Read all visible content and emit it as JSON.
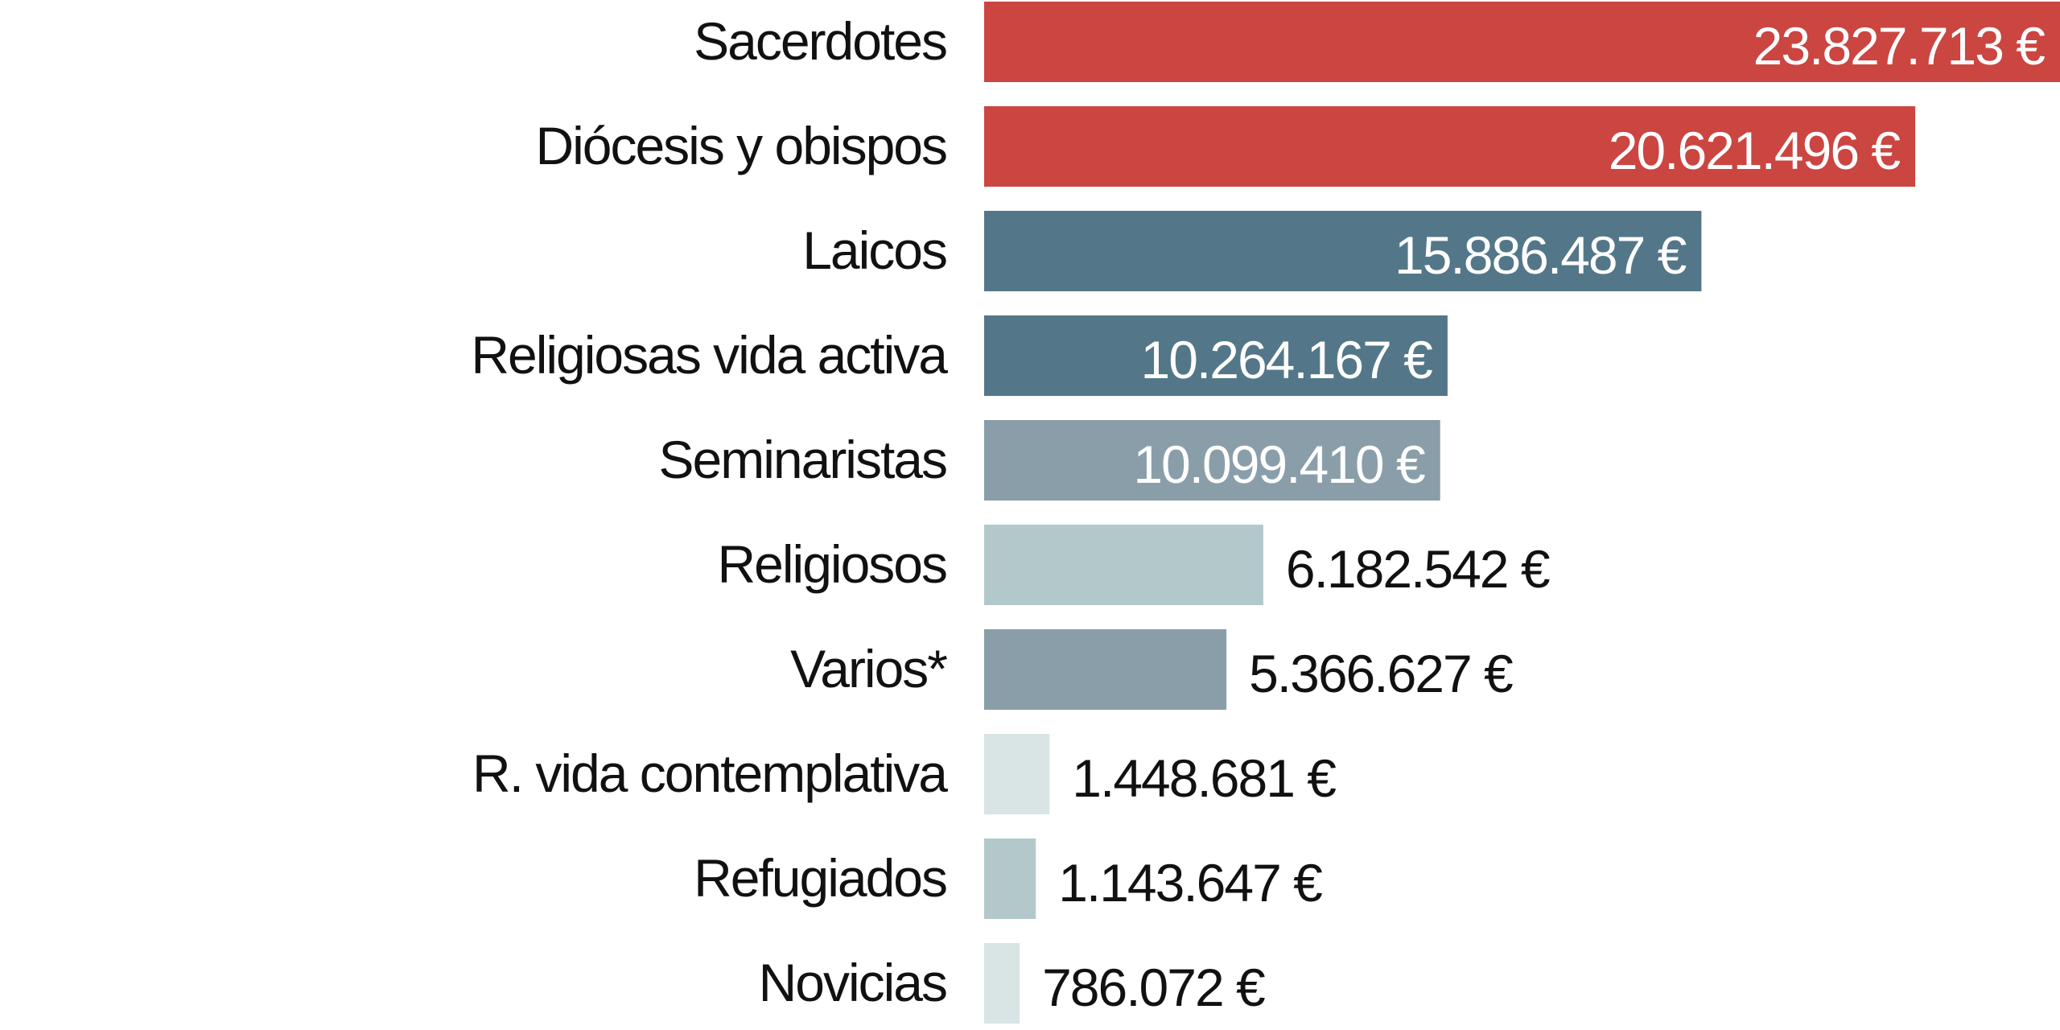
{
  "chart_data": {
    "type": "bar",
    "orientation": "horizontal",
    "categories": [
      "Sacerdotes",
      "Diócesis y obispos",
      "Laicos",
      "Religiosas vida activa",
      "Seminaristas",
      "Religiosos",
      "Varios*",
      "R. vida contemplativa",
      "Refugiados",
      "Novicias"
    ],
    "values": [
      23827713,
      20621496,
      15886487,
      10264167,
      10099410,
      6182542,
      5366627,
      1448681,
      1143647,
      786072
    ],
    "value_labels": [
      "23.827.713 €",
      "20.621.496 €",
      "15.886.487 €",
      "10.264.167 €",
      "10.099.410 €",
      "6.182.542 €",
      "5.366.627 €",
      "1.448.681 €",
      "1.143.647 €",
      "786.072 €"
    ],
    "colors": [
      "#cb4541",
      "#cb4541",
      "#537789",
      "#537789",
      "#8a9ea9",
      "#b3c8cb",
      "#8a9ea9",
      "#d9e4e5",
      "#b3c8cb",
      "#d9e4e5"
    ],
    "label_colors": [
      "#ffffff",
      "#ffffff",
      "#ffffff",
      "#ffffff",
      "#ffffff",
      "#111111",
      "#111111",
      "#111111",
      "#111111",
      "#111111"
    ],
    "label_inside": [
      true,
      true,
      true,
      true,
      true,
      false,
      false,
      false,
      false,
      false
    ],
    "xlim": [
      0,
      23827713
    ],
    "title": "",
    "xlabel": "",
    "ylabel": "",
    "grid": false,
    "legend": "none"
  }
}
